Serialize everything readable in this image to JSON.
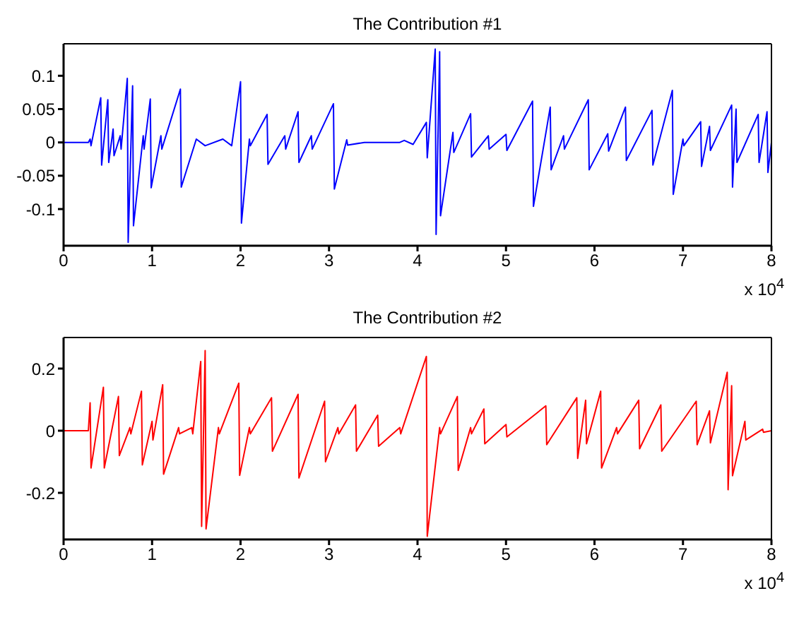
{
  "chart_data": [
    {
      "type": "line",
      "title": "The Contribution  #1",
      "annotations": [
        "x 10$^{4}$"
      ],
      "xlim": [
        0,
        8
      ],
      "xticks": [
        0,
        1,
        2,
        3,
        4,
        5,
        6,
        7,
        8
      ],
      "ylim": [
        -0.155,
        0.148
      ],
      "yticks": [
        -0.1,
        -0.05,
        0,
        0.05,
        0.1
      ],
      "grid": false,
      "legend": false,
      "marker": "none",
      "line_style": "solid",
      "series": [
        {
          "color": "#0000ff",
          "x": [
            0,
            0.28,
            0.3,
            0.31,
            0.42,
            0.43,
            0.5,
            0.51,
            0.56,
            0.57,
            0.64,
            0.65,
            0.72,
            0.73,
            0.78,
            0.79,
            0.9,
            0.91,
            0.98,
            0.99,
            1.1,
            1.11,
            1.32,
            1.33,
            1.5,
            1.6,
            1.8,
            1.9,
            2.0,
            2.01,
            2.1,
            2.11,
            2.3,
            2.31,
            2.5,
            2.51,
            2.65,
            2.66,
            2.8,
            2.81,
            3.05,
            3.06,
            3.2,
            3.21,
            3.4,
            3.8,
            3.85,
            3.95,
            4.1,
            4.11,
            4.2,
            4.21,
            4.25,
            4.26,
            4.4,
            4.41,
            4.6,
            4.61,
            4.8,
            4.81,
            5.0,
            5.01,
            5.3,
            5.31,
            5.5,
            5.51,
            5.65,
            5.66,
            5.93,
            5.94,
            6.15,
            6.16,
            6.35,
            6.36,
            6.65,
            6.66,
            6.88,
            6.89,
            7.0,
            7.01,
            7.2,
            7.21,
            7.3,
            7.31,
            7.55,
            7.56,
            7.6,
            7.61,
            7.85,
            7.86,
            7.95,
            7.96,
            8
          ],
          "values": [
            0,
            0,
            0.005,
            -0.005,
            0.067,
            -0.034,
            0.064,
            -0.03,
            0.02,
            -0.02,
            0.01,
            -0.01,
            0.096,
            -0.15,
            0.085,
            -0.125,
            0.01,
            -0.01,
            0.065,
            -0.068,
            0.01,
            -0.01,
            0.08,
            -0.067,
            0.005,
            -0.005,
            0.005,
            -0.005,
            0.091,
            -0.121,
            0.005,
            -0.005,
            0.042,
            -0.033,
            0.01,
            -0.01,
            0.046,
            -0.03,
            0.01,
            -0.01,
            0.058,
            -0.07,
            0.004,
            -0.004,
            0,
            0,
            0.003,
            -0.003,
            0.03,
            -0.023,
            0.14,
            -0.138,
            0.136,
            -0.11,
            0.015,
            -0.015,
            0.043,
            -0.022,
            0.01,
            -0.01,
            0.012,
            -0.012,
            0.062,
            -0.096,
            0.053,
            -0.041,
            0.01,
            -0.01,
            0.064,
            -0.041,
            0.013,
            -0.013,
            0.053,
            -0.027,
            0.048,
            -0.034,
            0.078,
            -0.078,
            0.005,
            -0.005,
            0.031,
            -0.036,
            0.024,
            -0.012,
            0.056,
            -0.067,
            0.05,
            -0.03,
            0.042,
            -0.03,
            0.046,
            -0.045,
            0
          ]
        }
      ]
    },
    {
      "type": "line",
      "title": "The Contribution #2",
      "annotations": [
        "x 10$^{4}$"
      ],
      "xlim": [
        0,
        8
      ],
      "xticks": [
        0,
        1,
        2,
        3,
        4,
        5,
        6,
        7,
        8
      ],
      "ylim": [
        -0.35,
        0.3
      ],
      "yticks": [
        -0.2,
        0,
        0.2
      ],
      "grid": false,
      "legend": false,
      "marker": "none",
      "line_style": "solid",
      "series": [
        {
          "color": "#ff0000",
          "x": [
            0,
            0.28,
            0.3,
            0.31,
            0.45,
            0.46,
            0.62,
            0.63,
            0.75,
            0.76,
            0.88,
            0.89,
            1.0,
            1.01,
            1.12,
            1.13,
            1.3,
            1.31,
            1.45,
            1.46,
            1.55,
            1.56,
            1.6,
            1.61,
            1.75,
            1.76,
            1.98,
            1.99,
            2.1,
            2.11,
            2.35,
            2.36,
            2.65,
            2.66,
            2.95,
            2.96,
            3.1,
            3.11,
            3.3,
            3.31,
            3.55,
            3.56,
            3.8,
            3.81,
            4.1,
            4.11,
            4.25,
            4.26,
            4.45,
            4.46,
            4.6,
            4.61,
            4.75,
            4.76,
            5.0,
            5.01,
            5.45,
            5.46,
            5.8,
            5.81,
            5.9,
            5.91,
            6.07,
            6.08,
            6.25,
            6.26,
            6.5,
            6.51,
            6.75,
            6.76,
            7.15,
            7.16,
            7.3,
            7.31,
            7.5,
            7.51,
            7.55,
            7.56,
            7.7,
            7.71,
            7.9,
            7.91,
            8
          ],
          "values": [
            0,
            0,
            0.09,
            -0.12,
            0.14,
            -0.12,
            0.11,
            -0.08,
            0.01,
            -0.01,
            0.127,
            -0.11,
            0.03,
            -0.03,
            0.148,
            -0.14,
            0.01,
            -0.01,
            0.01,
            -0.01,
            0.223,
            -0.308,
            0.258,
            -0.316,
            0.01,
            -0.01,
            0.153,
            -0.144,
            0.01,
            -0.01,
            0.106,
            -0.066,
            0.117,
            -0.152,
            0.095,
            -0.1,
            0.01,
            -0.01,
            0.083,
            -0.066,
            0.05,
            -0.05,
            0.01,
            -0.01,
            0.239,
            -0.34,
            0.01,
            -0.01,
            0.11,
            -0.128,
            0.01,
            -0.01,
            0.07,
            -0.042,
            0.02,
            -0.02,
            0.08,
            -0.045,
            0.106,
            -0.089,
            0.098,
            -0.042,
            0.127,
            -0.12,
            0.01,
            -0.01,
            0.098,
            -0.058,
            0.083,
            -0.066,
            0.095,
            -0.045,
            0.064,
            -0.039,
            0.188,
            -0.19,
            0.145,
            -0.145,
            0.03,
            -0.03,
            0.005,
            -0.005,
            0
          ]
        }
      ]
    }
  ]
}
